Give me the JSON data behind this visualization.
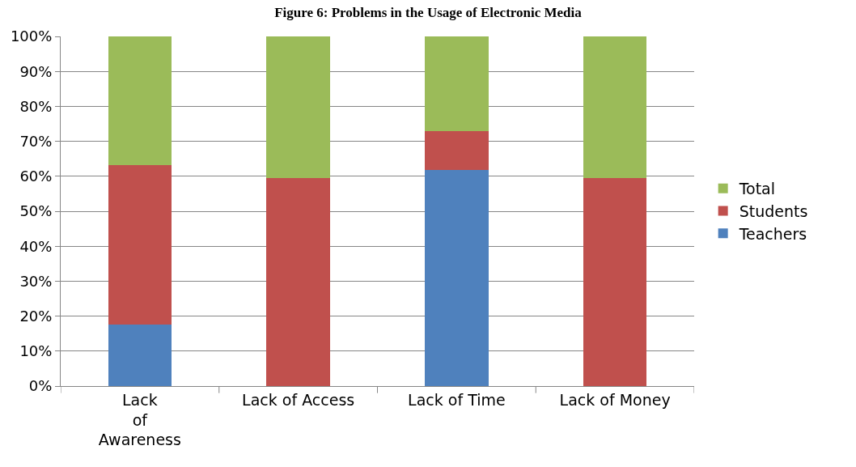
{
  "chart_data": {
    "type": "bar",
    "title": "Figure 6: Problems in the Usage of Electronic Media",
    "stacked": true,
    "categories": [
      "Lack of Awareness",
      "Lack of Access",
      "Lack of Time",
      "Lack of Money"
    ],
    "series": [
      {
        "name": "Teachers",
        "color": "#4f81bd",
        "values": [
          17.6,
          0,
          61.9,
          0
        ]
      },
      {
        "name": "Students",
        "color": "#c0504d",
        "values": [
          45.7,
          59.4,
          11.0,
          59.4
        ]
      },
      {
        "name": "Total",
        "color": "#9bbb59",
        "values": [
          36.7,
          40.6,
          27.1,
          40.6
        ]
      }
    ],
    "ylim": [
      0,
      100
    ],
    "yticks": [
      {
        "value": 0,
        "label": "0%"
      },
      {
        "value": 10,
        "label": "10%"
      },
      {
        "value": 20,
        "label": "20%"
      },
      {
        "value": 30,
        "label": "30%"
      },
      {
        "value": 40,
        "label": "40%"
      },
      {
        "value": 50,
        "label": "50%"
      },
      {
        "value": 60,
        "label": "60%"
      },
      {
        "value": 70,
        "label": "70%"
      },
      {
        "value": 80,
        "label": "80%"
      },
      {
        "value": 90,
        "label": "90%"
      },
      {
        "value": 100,
        "label": "100%"
      }
    ],
    "grid": "y",
    "legend": "right"
  }
}
